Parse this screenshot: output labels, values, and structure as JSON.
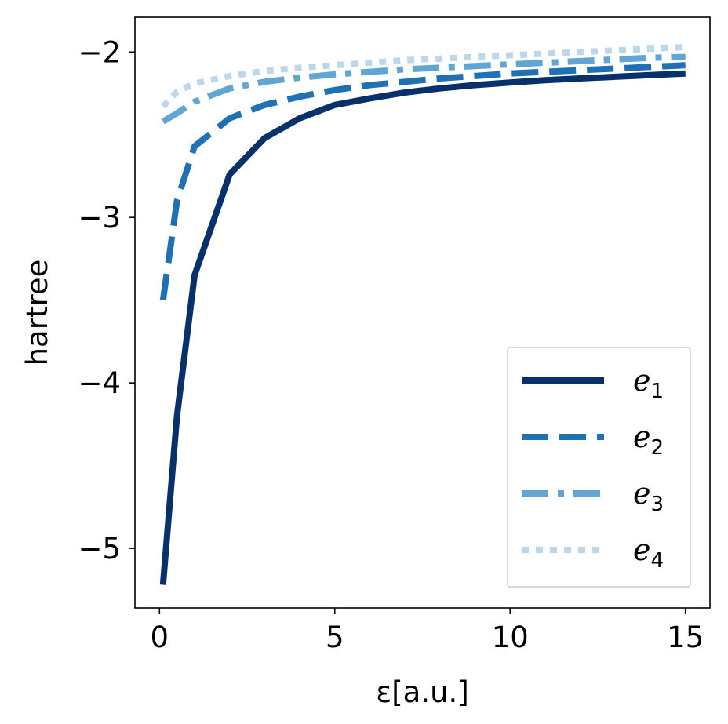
{
  "chart_data": {
    "type": "line",
    "xlabel": "ε[a.u.]",
    "ylabel": "hartree",
    "xlim": [
      -0.7,
      15.7
    ],
    "ylim": [
      -5.36,
      -1.79
    ],
    "xticks": [
      0,
      5,
      10,
      15
    ],
    "xtick_labels": [
      "0",
      "5",
      "10",
      "15"
    ],
    "yticks": [
      -2,
      -3,
      -4,
      -5
    ],
    "ytick_labels": [
      "−2",
      "−3",
      "−4",
      "−5"
    ],
    "grid": false,
    "legend_position": "lower-right",
    "x": [
      0.1,
      0.5,
      1,
      2,
      3,
      4,
      5,
      6,
      7,
      8,
      9,
      10,
      11,
      12,
      13,
      14,
      15
    ],
    "series": [
      {
        "name": "e1",
        "legend_base": "e",
        "legend_sub": "1",
        "color": "#08306b",
        "dash": "none",
        "values": [
          -5.22,
          -4.2,
          -3.35,
          -2.74,
          -2.52,
          -2.4,
          -2.32,
          -2.28,
          -2.245,
          -2.22,
          -2.2,
          -2.185,
          -2.17,
          -2.16,
          -2.15,
          -2.14,
          -2.13
        ]
      },
      {
        "name": "e2",
        "legend_base": "e",
        "legend_sub": "2",
        "color": "#2070b4",
        "dash": "dashed",
        "values": [
          -3.5,
          -2.9,
          -2.57,
          -2.4,
          -2.32,
          -2.27,
          -2.23,
          -2.2,
          -2.18,
          -2.16,
          -2.145,
          -2.13,
          -2.12,
          -2.11,
          -2.1,
          -2.09,
          -2.08
        ]
      },
      {
        "name": "e3",
        "legend_base": "e",
        "legend_sub": "3",
        "color": "#61a5d2",
        "dash": "dashdot",
        "values": [
          -2.42,
          -2.37,
          -2.3,
          -2.22,
          -2.18,
          -2.155,
          -2.135,
          -2.12,
          -2.105,
          -2.095,
          -2.085,
          -2.075,
          -2.065,
          -2.055,
          -2.045,
          -2.035,
          -2.03
        ]
      },
      {
        "name": "e4",
        "legend_base": "e",
        "legend_sub": "4",
        "color": "#bcd7ec",
        "dash": "dotted",
        "values": [
          -2.33,
          -2.24,
          -2.19,
          -2.145,
          -2.115,
          -2.095,
          -2.08,
          -2.065,
          -2.05,
          -2.04,
          -2.03,
          -2.02,
          -2.01,
          -2.0,
          -1.99,
          -1.98,
          -1.97
        ]
      }
    ]
  }
}
